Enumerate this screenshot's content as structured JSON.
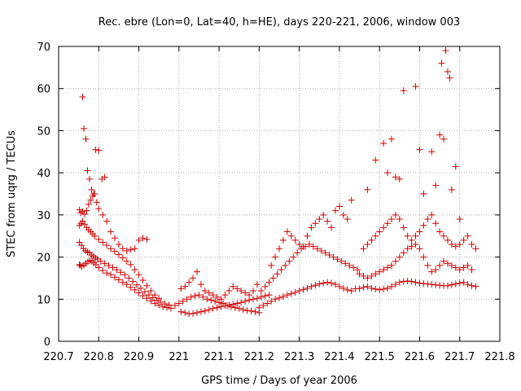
{
  "chart_data": {
    "type": "scatter",
    "title": "Rec. ebre (Lon=0, Lat=40, h=HE), days 220-221, 2006, window 003",
    "xlabel": "GPS time / Days of year 2006",
    "ylabel": "STEC from uqrg / TECUs",
    "xlim": [
      220.7,
      221.8
    ],
    "ylim": [
      0,
      70
    ],
    "xticks": [
      "220.7",
      "220.8",
      "220.9",
      "221",
      "221.1",
      "221.2",
      "221.3",
      "221.4",
      "221.5",
      "221.6",
      "221.7",
      "221.8"
    ],
    "yticks": [
      "0",
      "10",
      "20",
      "30",
      "40",
      "50",
      "60",
      "70"
    ],
    "grid": true,
    "marker": "plus",
    "color": "#cc0000",
    "series": [
      {
        "x": [
          220.752,
          220.754,
          220.758,
          220.763,
          220.768,
          220.773,
          220.778,
          220.783,
          220.788,
          220.793,
          220.8,
          220.81,
          220.82,
          220.83,
          220.84,
          220.85,
          220.86,
          220.87,
          220.88,
          220.89,
          220.9,
          220.91,
          220.92,
          220.93,
          220.94,
          220.95,
          220.96,
          220.97,
          220.98
        ],
        "y": [
          18.2,
          18.0,
          17.8,
          18.1,
          18.5,
          18.9,
          19.2,
          19.0,
          18.6,
          18.2,
          17.5,
          16.8,
          16.2,
          15.8,
          15.2,
          14.6,
          14.0,
          13.5,
          12.8,
          12.2,
          11.5,
          10.8,
          10.2,
          9.6,
          9.0,
          8.6,
          8.2,
          8.0,
          7.8
        ]
      },
      {
        "x": [
          220.752,
          220.757,
          220.762,
          220.767,
          220.772,
          220.777,
          220.782,
          220.787,
          220.792,
          220.797,
          220.805,
          220.815,
          220.825,
          220.835,
          220.845,
          220.855,
          220.865,
          220.875,
          220.885,
          220.895,
          220.905,
          220.915,
          220.925,
          220.935,
          220.945,
          220.955,
          220.965,
          220.975
        ],
        "y": [
          23.5,
          22.8,
          22.0,
          21.5,
          21.2,
          21.0,
          20.5,
          20.2,
          19.8,
          19.5,
          19.0,
          18.5,
          18.0,
          17.5,
          17.0,
          16.4,
          15.8,
          15.0,
          14.2,
          13.4,
          12.6,
          11.8,
          11.0,
          10.4,
          9.8,
          9.3,
          8.9,
          8.6
        ]
      },
      {
        "x": [
          220.752,
          220.756,
          220.76,
          220.765,
          220.77,
          220.775,
          220.78,
          220.785,
          220.79,
          220.8,
          220.81,
          220.82,
          220.83,
          220.84,
          220.85,
          220.86,
          220.87,
          220.88,
          220.89,
          220.9,
          220.91,
          220.92,
          220.93,
          220.94,
          220.95
        ],
        "y": [
          27.5,
          28.0,
          28.5,
          27.8,
          27.0,
          26.5,
          26.0,
          25.5,
          25.0,
          24.2,
          23.5,
          22.8,
          22.0,
          21.4,
          20.6,
          19.8,
          19.0,
          18.2,
          17.0,
          15.8,
          14.5,
          13.2,
          12.0,
          11.0,
          10.2
        ]
      },
      {
        "x": [
          220.752,
          220.755,
          220.76,
          220.765,
          220.77,
          220.775,
          220.78,
          220.785,
          220.79,
          220.795,
          220.8,
          220.81,
          220.82,
          220.83,
          220.84,
          220.85,
          220.86,
          220.87,
          220.88,
          220.89,
          220.9,
          220.91,
          220.92
        ],
        "y": [
          31.2,
          30.5,
          30.8,
          30.2,
          31.0,
          32.5,
          33.5,
          34.5,
          35.0,
          33.0,
          31.5,
          30.0,
          28.5,
          26.0,
          24.5,
          23.0,
          22.0,
          21.5,
          21.8,
          22.0,
          24.0,
          24.5,
          24.2
        ]
      },
      {
        "x": [
          220.76,
          220.763,
          220.768,
          220.772,
          220.777,
          220.782,
          220.787,
          220.792,
          220.8,
          220.808,
          220.815
        ],
        "y": [
          58.0,
          50.5,
          48.0,
          40.5,
          38.5,
          36.0,
          35.0,
          45.5,
          45.3,
          38.5,
          39.0
        ]
      },
      {
        "x": [
          220.99,
          221.0,
          221.01,
          221.02,
          221.03,
          221.04,
          221.05,
          221.06,
          221.07,
          221.08,
          221.09,
          221.1,
          221.11,
          221.12,
          221.13,
          221.14,
          221.15,
          221.16,
          221.17,
          221.18,
          221.19,
          221.2
        ],
        "y": [
          8.5,
          9.0,
          9.5,
          10.0,
          10.5,
          10.8,
          11.0,
          10.5,
          10.0,
          9.8,
          9.5,
          9.2,
          9.0,
          8.5,
          8.2,
          8.0,
          7.8,
          7.5,
          7.3,
          7.2,
          7.0,
          6.8
        ]
      },
      {
        "x": [
          221.005,
          221.015,
          221.025,
          221.035,
          221.045,
          221.055,
          221.065,
          221.075,
          221.085,
          221.095,
          221.105,
          221.115,
          221.125,
          221.135,
          221.145,
          221.155,
          221.165,
          221.175,
          221.185,
          221.195
        ],
        "y": [
          12.5,
          13.0,
          14.0,
          15.0,
          16.5,
          13.5,
          12.0,
          11.5,
          11.0,
          10.5,
          10.0,
          11.0,
          12.0,
          13.0,
          12.5,
          12.0,
          11.5,
          11.0,
          12.0,
          13.5
        ]
      },
      {
        "x": [
          221.005,
          221.015,
          221.025,
          221.035,
          221.045,
          221.055,
          221.065,
          221.075,
          221.085,
          221.095,
          221.105,
          221.115,
          221.125,
          221.135,
          221.145,
          221.155,
          221.165,
          221.175,
          221.185,
          221.195,
          221.205,
          221.215,
          221.225
        ],
        "y": [
          7.0,
          6.8,
          6.5,
          6.6,
          6.8,
          7.0,
          7.2,
          7.5,
          7.8,
          8.0,
          8.2,
          8.5,
          8.6,
          8.8,
          9.0,
          9.2,
          9.5,
          9.8,
          10.0,
          10.2,
          10.5,
          10.8,
          11.0
        ]
      },
      {
        "x": [
          221.2,
          221.21,
          221.22,
          221.23,
          221.24,
          221.25,
          221.26,
          221.27,
          221.28,
          221.29,
          221.3,
          221.31,
          221.32,
          221.33,
          221.34,
          221.35,
          221.36,
          221.37,
          221.38,
          221.39,
          221.4,
          221.41,
          221.42,
          221.43,
          221.44
        ],
        "y": [
          8.0,
          8.5,
          9.0,
          9.5,
          10.0,
          10.3,
          10.6,
          11.0,
          11.3,
          11.6,
          12.0,
          12.3,
          12.6,
          13.0,
          13.3,
          13.6,
          13.8,
          14.0,
          13.8,
          13.5,
          13.0,
          12.6,
          12.2,
          12.0,
          12.5
        ]
      },
      {
        "x": [
          221.205,
          221.215,
          221.225,
          221.235,
          221.245,
          221.255,
          221.265,
          221.275,
          221.285,
          221.295,
          221.305,
          221.315,
          221.325,
          221.335,
          221.345,
          221.355,
          221.365,
          221.375,
          221.385,
          221.395,
          221.405,
          221.415,
          221.425,
          221.435,
          221.445
        ],
        "y": [
          12.0,
          13.0,
          14.0,
          15.0,
          16.0,
          17.0,
          18.0,
          19.0,
          20.0,
          21.0,
          22.0,
          22.5,
          23.0,
          22.5,
          22.0,
          21.5,
          21.0,
          20.5,
          20.0,
          19.5,
          19.0,
          18.5,
          18.0,
          17.5,
          17.0
        ]
      },
      {
        "x": [
          221.23,
          221.24,
          221.25,
          221.26,
          221.27,
          221.28,
          221.29,
          221.3,
          221.31,
          221.32,
          221.33,
          221.34,
          221.35,
          221.36,
          221.37,
          221.38,
          221.39,
          221.4,
          221.41,
          221.42,
          221.43
        ],
        "y": [
          18.0,
          20.0,
          22.0,
          24.0,
          26.0,
          25.0,
          24.0,
          23.0,
          22.5,
          25.0,
          27.0,
          28.0,
          29.0,
          30.0,
          28.5,
          27.0,
          31.0,
          32.0,
          30.0,
          29.0,
          33.5
        ]
      },
      {
        "x": [
          221.45,
          221.46,
          221.47,
          221.48,
          221.49,
          221.5,
          221.51,
          221.52,
          221.53,
          221.54,
          221.55,
          221.56,
          221.57,
          221.58,
          221.59,
          221.6,
          221.61,
          221.62,
          221.63,
          221.64,
          221.65,
          221.66,
          221.67,
          221.68,
          221.69,
          221.7,
          221.71,
          221.72,
          221.73,
          221.74
        ],
        "y": [
          12.5,
          12.8,
          13.0,
          12.6,
          12.4,
          12.2,
          12.4,
          12.6,
          13.0,
          13.5,
          14.0,
          14.2,
          14.3,
          14.2,
          14.0,
          13.8,
          13.7,
          13.6,
          13.5,
          13.4,
          13.3,
          13.2,
          13.2,
          13.4,
          13.6,
          13.8,
          14.0,
          13.5,
          13.2,
          13.0
        ]
      },
      {
        "x": [
          221.45,
          221.46,
          221.47,
          221.48,
          221.49,
          221.5,
          221.51,
          221.52,
          221.53,
          221.54,
          221.55,
          221.56,
          221.57,
          221.58,
          221.59,
          221.6,
          221.61,
          221.62,
          221.63,
          221.64,
          221.65,
          221.66,
          221.67,
          221.68,
          221.69,
          221.7,
          221.71,
          221.72,
          221.73
        ],
        "y": [
          16.0,
          15.5,
          15.0,
          15.5,
          16.0,
          16.5,
          17.0,
          17.5,
          18.0,
          19.0,
          20.0,
          21.0,
          22.0,
          22.5,
          23.0,
          22.0,
          20.0,
          18.0,
          16.5,
          17.0,
          18.0,
          19.0,
          18.5,
          18.0,
          17.5,
          17.0,
          17.5,
          18.0,
          17.0
        ]
      },
      {
        "x": [
          221.46,
          221.47,
          221.48,
          221.49,
          221.5,
          221.51,
          221.52,
          221.53,
          221.54,
          221.55,
          221.56,
          221.57,
          221.58,
          221.59,
          221.6,
          221.61,
          221.62,
          221.63,
          221.64,
          221.65,
          221.66,
          221.67,
          221.68,
          221.69,
          221.7,
          221.71,
          221.72,
          221.73,
          221.74
        ],
        "y": [
          22.0,
          23.0,
          24.0,
          25.0,
          26.0,
          27.0,
          28.0,
          29.0,
          30.0,
          29.0,
          27.0,
          25.0,
          24.0,
          25.0,
          26.0,
          27.5,
          29.0,
          30.0,
          28.0,
          26.0,
          25.0,
          24.0,
          23.0,
          22.5,
          23.0,
          24.0,
          25.0,
          23.0,
          22.0
        ]
      },
      {
        "x": [
          221.47,
          221.49,
          221.51,
          221.52,
          221.53,
          221.54,
          221.55,
          221.56,
          221.59,
          221.6,
          221.61,
          221.63,
          221.64,
          221.65,
          221.655,
          221.66,
          221.665,
          221.67,
          221.675,
          221.68,
          221.69,
          221.7
        ],
        "y": [
          36.0,
          43.0,
          47.0,
          40.0,
          48.0,
          39.0,
          38.5,
          59.5,
          60.5,
          45.5,
          35.0,
          45.0,
          37.0,
          49.0,
          66.0,
          48.0,
          69.0,
          64.0,
          62.5,
          36.0,
          41.5,
          29.0
        ]
      }
    ]
  }
}
